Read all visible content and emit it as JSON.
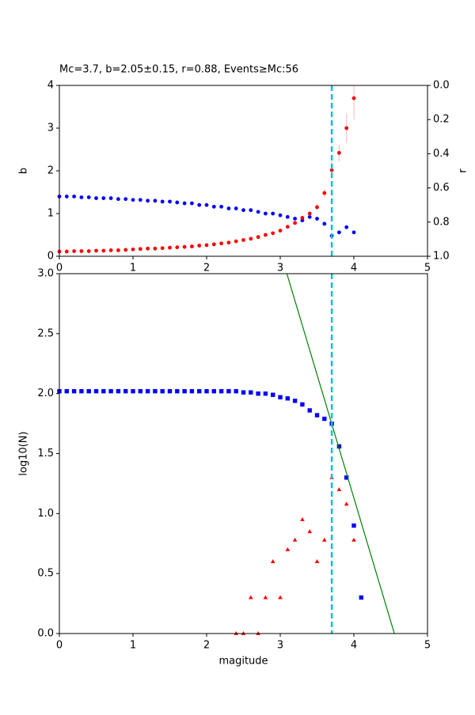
{
  "chart_data": [
    {
      "type": "scatter",
      "title": "Mc=3.7, b=2.05±0.15, r=0.88, Events≥Mc:56",
      "ylabel": "b",
      "y2label": "r",
      "xlim": [
        0,
        5
      ],
      "xticks": [
        0,
        1,
        2,
        3,
        4,
        5
      ],
      "ylim": [
        0,
        4
      ],
      "yticks": [
        0,
        1,
        2,
        3,
        4
      ],
      "y2lim": [
        0,
        1
      ],
      "y2_inverted": true,
      "y2ticks": [
        {
          "value": 0,
          "label": "0.0"
        },
        {
          "value": 0.2,
          "label": "0.2"
        },
        {
          "value": 0.4,
          "label": "0.4"
        },
        {
          "value": 0.6,
          "label": "0.6"
        },
        {
          "value": 0.8,
          "label": "0.8"
        },
        {
          "value": 1,
          "label": "1.0"
        }
      ],
      "vline": 3.7,
      "vline_color": "#17becf",
      "series": [
        {
          "color": "#0000ff",
          "marker": "circle",
          "axis": "y2",
          "x": [
            0,
            0.1,
            0.2,
            0.3,
            0.4,
            0.5,
            0.6,
            0.7,
            0.8,
            0.9,
            1,
            1.1,
            1.2,
            1.3,
            1.4,
            1.5,
            1.6,
            1.7,
            1.8,
            1.9,
            2,
            2.1,
            2.2,
            2.3,
            2.4,
            2.5,
            2.6,
            2.7,
            2.8,
            2.9,
            3,
            3.1,
            3.2,
            3.3,
            3.4,
            3.5,
            3.6,
            3.7,
            3.8,
            3.9,
            4
          ],
          "values": [
            0.65,
            0.65,
            0.65,
            0.655,
            0.655,
            0.66,
            0.66,
            0.66,
            0.665,
            0.665,
            0.67,
            0.67,
            0.675,
            0.675,
            0.68,
            0.68,
            0.685,
            0.69,
            0.69,
            0.7,
            0.7,
            0.71,
            0.71,
            0.72,
            0.72,
            0.73,
            0.73,
            0.74,
            0.75,
            0.75,
            0.76,
            0.77,
            0.78,
            0.79,
            0.77,
            0.78,
            0.81,
            0.88,
            0.86,
            0.83,
            0.86
          ]
        },
        {
          "color": "#ff0000",
          "marker": "circle",
          "error_color": "#ffc0cb",
          "x": [
            0,
            0.1,
            0.2,
            0.3,
            0.4,
            0.5,
            0.6,
            0.7,
            0.8,
            0.9,
            1,
            1.1,
            1.2,
            1.3,
            1.4,
            1.5,
            1.6,
            1.7,
            1.8,
            1.9,
            2,
            2.1,
            2.2,
            2.3,
            2.4,
            2.5,
            2.6,
            2.7,
            2.8,
            2.9,
            3,
            3.1,
            3.2,
            3.3,
            3.4,
            3.5,
            3.6,
            3.7,
            3.8,
            3.9,
            4
          ],
          "values": [
            0.11,
            0.11,
            0.12,
            0.12,
            0.12,
            0.13,
            0.13,
            0.14,
            0.14,
            0.15,
            0.16,
            0.17,
            0.18,
            0.18,
            0.19,
            0.2,
            0.21,
            0.22,
            0.23,
            0.25,
            0.26,
            0.28,
            0.3,
            0.32,
            0.35,
            0.38,
            0.41,
            0.45,
            0.5,
            0.54,
            0.6,
            0.69,
            0.78,
            0.9,
            1.0,
            1.15,
            1.48,
            2.02,
            2.42,
            3.0,
            3.7
          ],
          "errors": [
            null,
            null,
            null,
            null,
            null,
            null,
            null,
            null,
            null,
            null,
            null,
            null,
            null,
            null,
            null,
            null,
            null,
            null,
            null,
            null,
            null,
            null,
            null,
            null,
            null,
            null,
            null,
            null,
            null,
            null,
            null,
            null,
            null,
            null,
            0.05,
            0.07,
            0.1,
            0.2,
            0.2,
            0.35,
            0.5
          ]
        }
      ]
    },
    {
      "type": "scatter",
      "xlabel": "magitude",
      "ylabel": "log10(N)",
      "xlim": [
        0,
        5
      ],
      "xticks": [
        0,
        1,
        2,
        3,
        4,
        5
      ],
      "ylim": [
        0,
        3
      ],
      "yticks": [
        {
          "value": 0,
          "label": "0.0"
        },
        {
          "value": 0.5,
          "label": "0.5"
        },
        {
          "value": 1,
          "label": "1.0"
        },
        {
          "value": 1.5,
          "label": "1.5"
        },
        {
          "value": 2,
          "label": "2.0"
        },
        {
          "value": 2.5,
          "label": "2.5"
        },
        {
          "value": 3,
          "label": "3.0"
        }
      ],
      "vline": 3.7,
      "vline_color": "#17becf",
      "series": [
        {
          "color": "#0000ff",
          "marker": "square",
          "x": [
            0,
            0.1,
            0.2,
            0.3,
            0.4,
            0.5,
            0.6,
            0.7,
            0.8,
            0.9,
            1,
            1.1,
            1.2,
            1.3,
            1.4,
            1.5,
            1.6,
            1.7,
            1.8,
            1.9,
            2,
            2.1,
            2.2,
            2.3,
            2.4,
            2.5,
            2.6,
            2.7,
            2.8,
            2.9,
            3,
            3.1,
            3.2,
            3.3,
            3.4,
            3.5,
            3.6,
            3.7,
            3.8,
            3.9,
            4,
            4.1
          ],
          "values": [
            2.02,
            2.02,
            2.02,
            2.02,
            2.02,
            2.02,
            2.02,
            2.02,
            2.02,
            2.02,
            2.02,
            2.02,
            2.02,
            2.02,
            2.02,
            2.02,
            2.02,
            2.02,
            2.02,
            2.02,
            2.02,
            2.02,
            2.02,
            2.02,
            2.02,
            2.01,
            2.01,
            2.0,
            2.0,
            1.99,
            1.97,
            1.96,
            1.94,
            1.91,
            1.86,
            1.82,
            1.79,
            1.75,
            1.56,
            1.3,
            0.9,
            0.3
          ]
        },
        {
          "color": "#ff0000",
          "marker": "triangle",
          "x": [
            2.4,
            2.5,
            2.6,
            2.7,
            2.8,
            2.9,
            3,
            3.1,
            3.2,
            3.3,
            3.4,
            3.5,
            3.6,
            3.7,
            3.8,
            3.9,
            4
          ],
          "values": [
            0,
            0,
            0.3,
            0,
            0.3,
            0.6,
            0.3,
            0.7,
            0.78,
            0.95,
            0.85,
            0.6,
            0.78,
            1.3,
            1.2,
            1.08,
            0.78
          ]
        },
        {
          "color": "#008000",
          "marker": "line",
          "x": [
            3.09,
            4.55
          ],
          "values": [
            3,
            0
          ]
        }
      ]
    }
  ]
}
